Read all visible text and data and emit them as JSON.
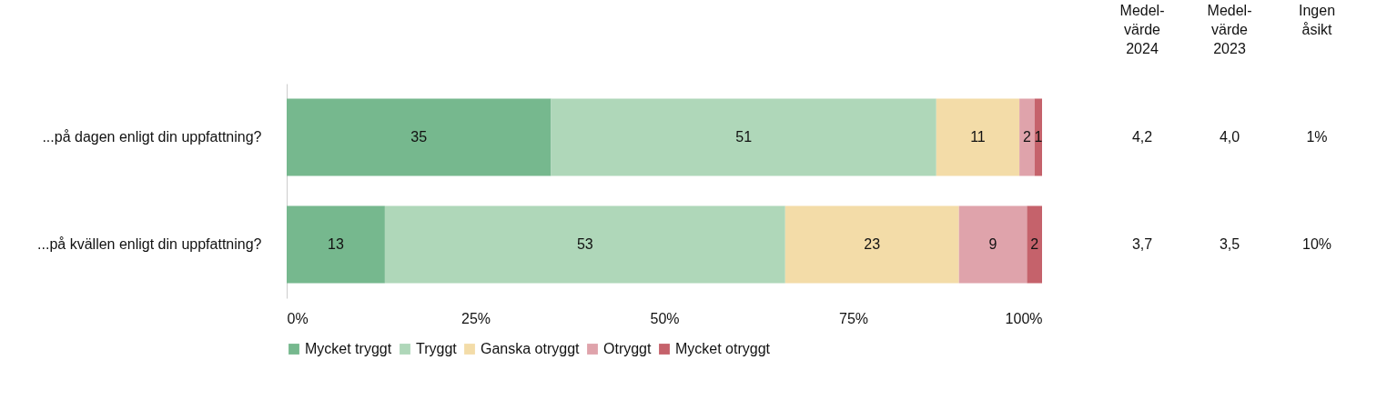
{
  "chart_data": {
    "type": "bar",
    "orientation": "horizontal",
    "stacked": true,
    "data_labels": true,
    "grid": false,
    "legend": "bottom",
    "categories": [
      "...på dagen enligt din uppfattning?",
      "...på kvällen enligt din uppfattning?"
    ],
    "series": [
      {
        "name": "Mycket tryggt",
        "color": "#76b88e",
        "values": [
          35,
          13
        ]
      },
      {
        "name": "Tryggt",
        "color": "#afd7b9",
        "values": [
          51,
          53
        ]
      },
      {
        "name": "Ganska otryggt",
        "color": "#f3dca8",
        "values": [
          11,
          23
        ]
      },
      {
        "name": "Otryggt",
        "color": "#dfa3ab",
        "values": [
          2,
          9
        ]
      },
      {
        "name": "Mycket otryggt",
        "color": "#c5626b",
        "values": [
          1,
          2
        ]
      }
    ],
    "xlim": [
      0,
      100
    ],
    "xticks": [
      {
        "value": 0,
        "label": "0%"
      },
      {
        "value": 25,
        "label": "25%"
      },
      {
        "value": 50,
        "label": "50%"
      },
      {
        "value": 75,
        "label": "75%"
      },
      {
        "value": 100,
        "label": "100%"
      }
    ],
    "annotations": [
      "Medel-\nvärde\n2024",
      "Medel-\nvärde\n2023",
      "Ingen\nåsikt",
      "4,2",
      "4,0",
      "1%",
      "3,7",
      "3,5",
      "10%"
    ]
  }
}
